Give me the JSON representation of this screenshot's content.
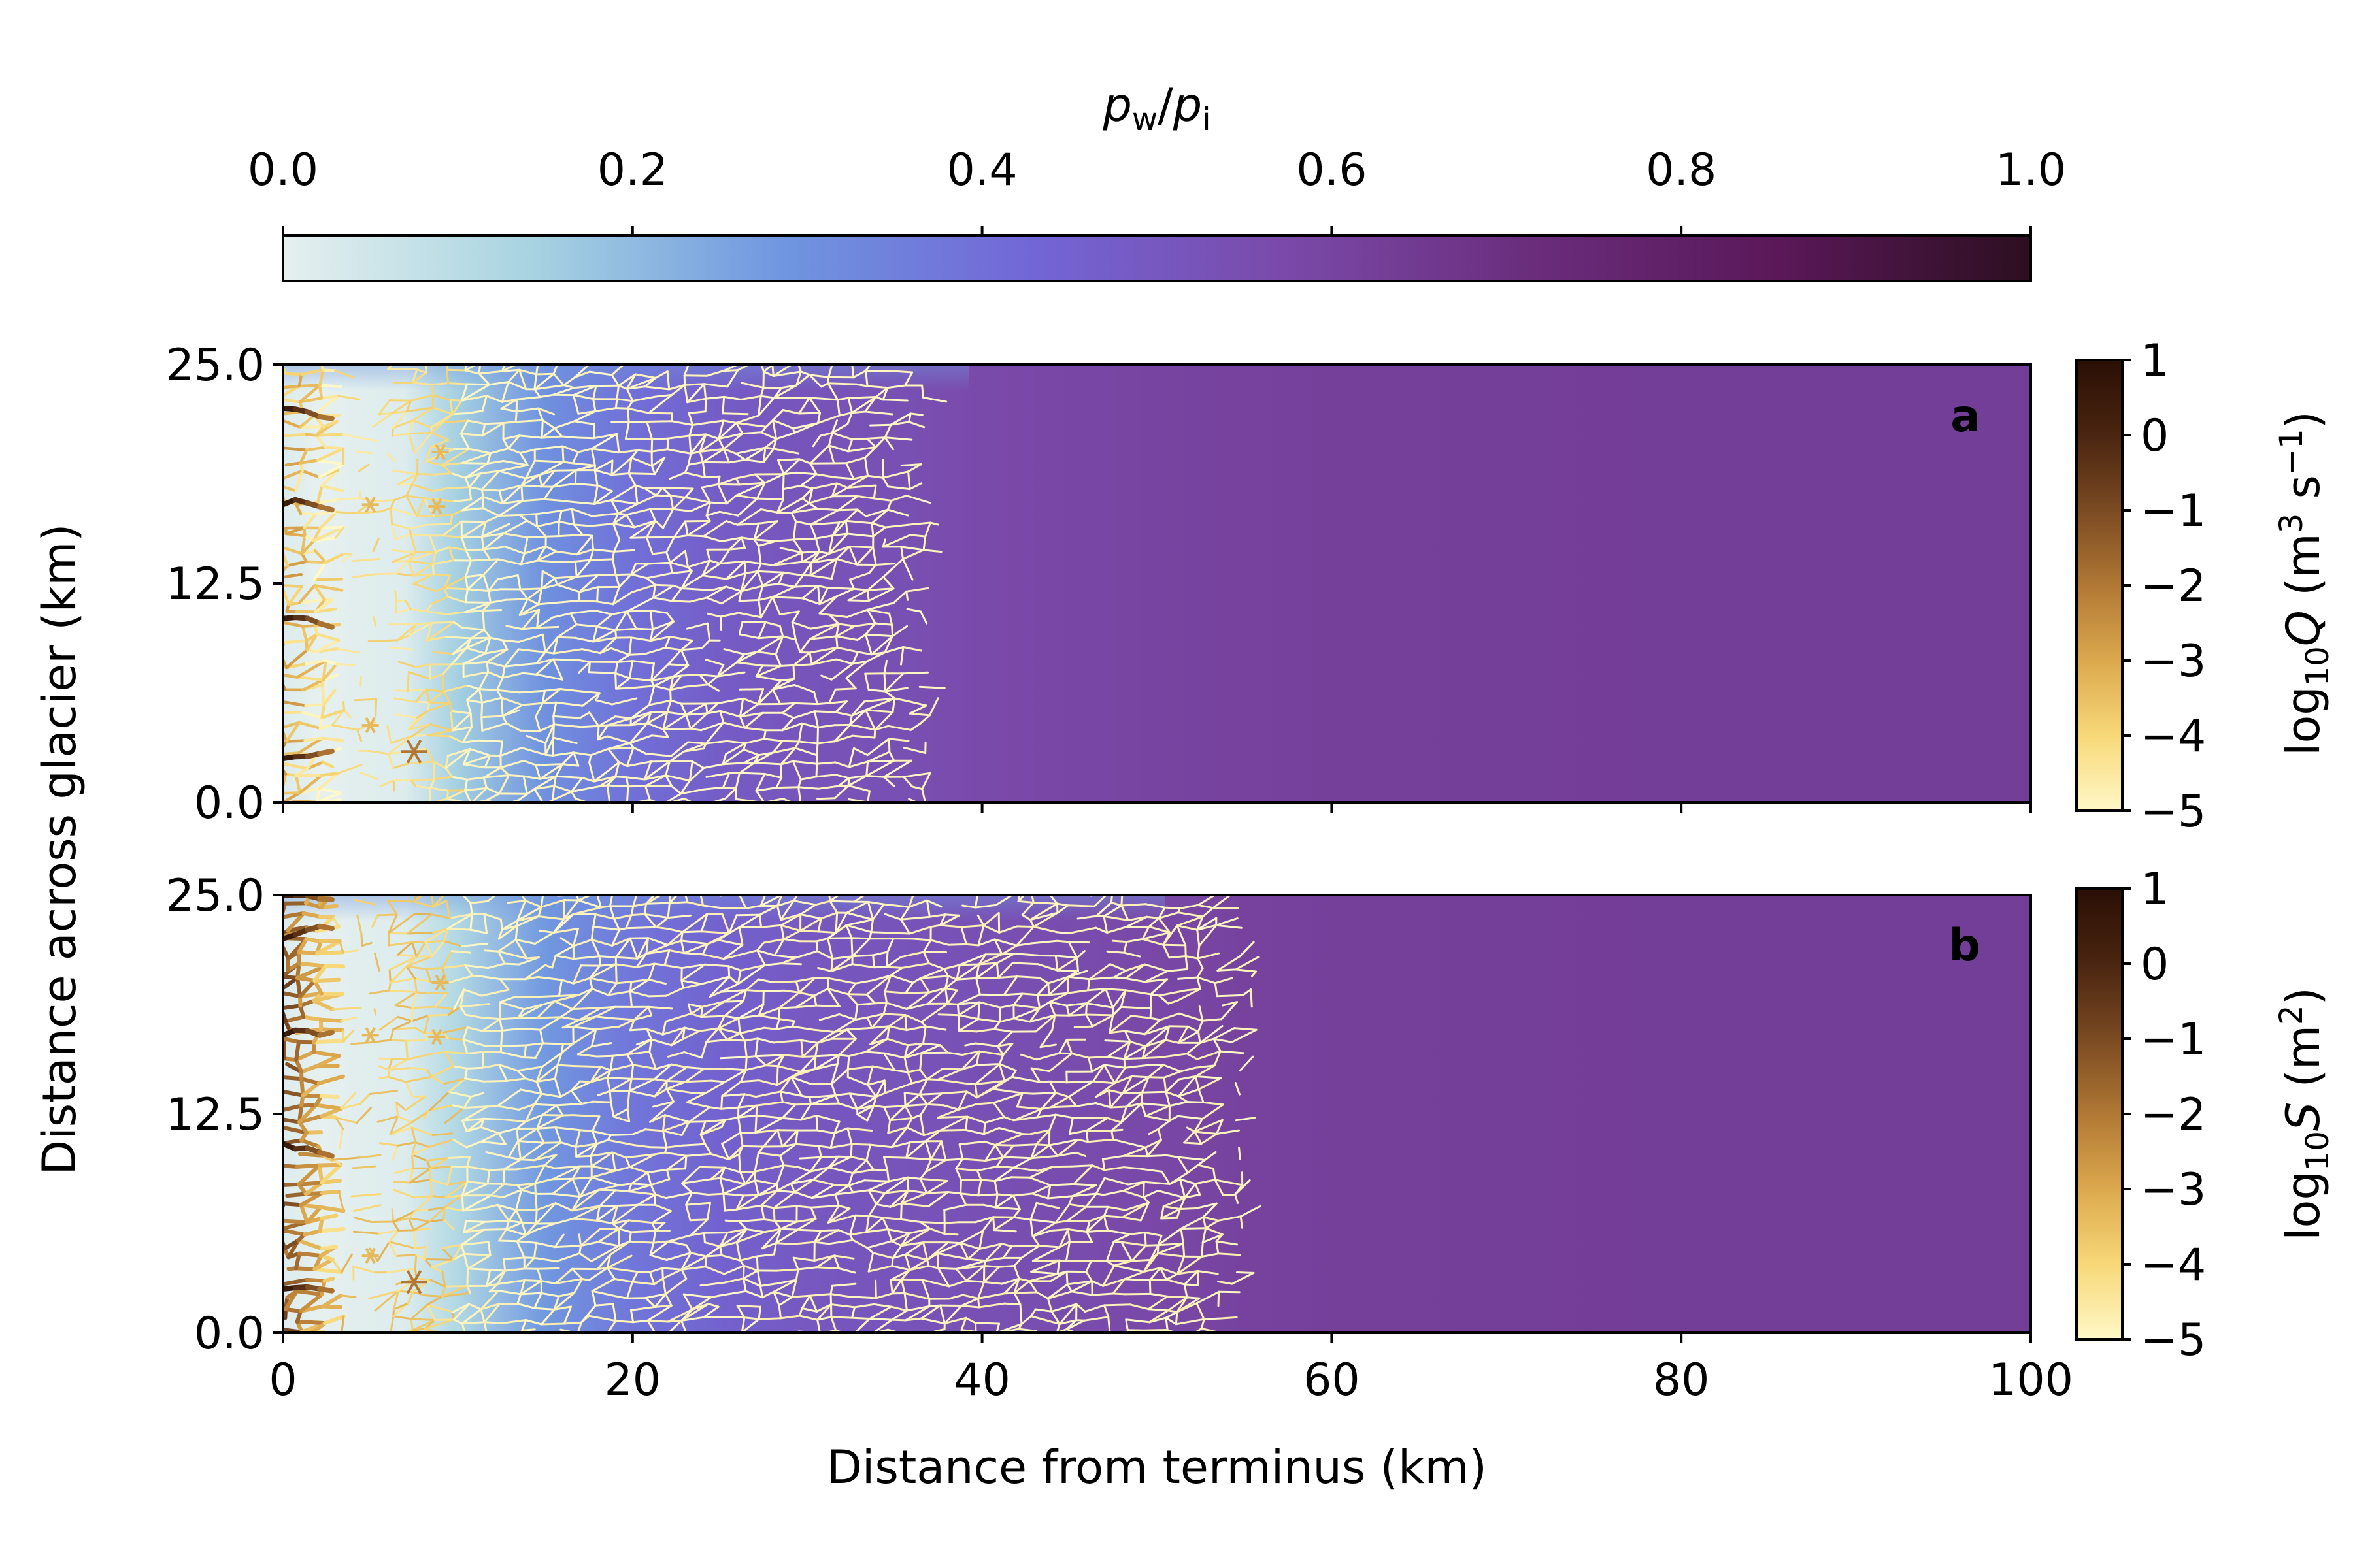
{
  "colorbar_top": {
    "label_p": "p",
    "label_w": "w",
    "label_slash": "/",
    "label_i": "i",
    "ticks": [
      "0.0",
      "0.2",
      "0.4",
      "0.6",
      "0.8",
      "1.0"
    ],
    "range": [
      0,
      1
    ],
    "colormap": [
      "#e6f0ef",
      "#a7d3e1",
      "#6f96e0",
      "#7266d6",
      "#7a4aaa",
      "#6a2d7c",
      "#5a1858",
      "#2c0f20"
    ]
  },
  "colorbar_q": {
    "label_log": "log",
    "label_sub": "10",
    "label_var": "Q",
    "label_units_open": " (m",
    "label_units_exp": "3",
    "label_units_mid": " s",
    "label_units_exp2": "−1",
    "label_units_close": ")",
    "ticks": [
      "1",
      "0",
      "−1",
      "−2",
      "−3",
      "−4",
      "−5"
    ],
    "range": [
      -5,
      1
    ],
    "colormap": [
      "#fff8c8",
      "#f7d878",
      "#dca84e",
      "#b07834",
      "#7a4a22",
      "#4a2510",
      "#2a0f05"
    ]
  },
  "colorbar_s": {
    "label_log": "log",
    "label_sub": "10",
    "label_var": "S",
    "label_units_open": " (m",
    "label_units_exp": "2",
    "label_units_close": ")",
    "ticks": [
      "1",
      "0",
      "−1",
      "−2",
      "−3",
      "−4",
      "−5"
    ],
    "range": [
      -5,
      1
    ]
  },
  "chart_data": [
    {
      "type": "heatmap",
      "panel": "a",
      "xlabel": "Distance from terminus (km)",
      "ylabel": "Distance across glacier (km)",
      "xlim": [
        0,
        100
      ],
      "ylim": [
        0,
        25
      ],
      "xticks": [
        "0",
        "20",
        "40",
        "60",
        "80",
        "100"
      ],
      "yticks": [
        "0.0",
        "12.5",
        "25.0"
      ],
      "background_profile": {
        "x_km": [
          0,
          2,
          7,
          10,
          15,
          20,
          25,
          30,
          35,
          40,
          50,
          60,
          80,
          100
        ],
        "pw_over_pi": [
          0.02,
          0.0,
          0.02,
          0.15,
          0.3,
          0.4,
          0.48,
          0.52,
          0.54,
          0.57,
          0.6,
          0.62,
          0.63,
          0.63
        ]
      },
      "channel_network_extent_km": [
        0,
        38
      ],
      "moulin_marker_km": [
        7.5,
        2.9
      ]
    },
    {
      "type": "heatmap",
      "panel": "b",
      "xlabel": "Distance from terminus (km)",
      "ylabel": "Distance across glacier (km)",
      "xlim": [
        0,
        100
      ],
      "ylim": [
        0,
        25
      ],
      "xticks": [
        "0",
        "20",
        "40",
        "60",
        "80",
        "100"
      ],
      "yticks": [
        "0.0",
        "12.5",
        "25.0"
      ],
      "background_profile": {
        "x_km": [
          0,
          2,
          7,
          10,
          15,
          20,
          25,
          30,
          40,
          50,
          55,
          60,
          80,
          100
        ],
        "pw_over_pi": [
          0.02,
          0.0,
          0.02,
          0.12,
          0.28,
          0.38,
          0.45,
          0.5,
          0.54,
          0.58,
          0.61,
          0.62,
          0.63,
          0.63
        ]
      },
      "channel_network_extent_km": [
        0,
        56
      ],
      "moulin_marker_km": [
        7.5,
        2.9
      ]
    }
  ]
}
